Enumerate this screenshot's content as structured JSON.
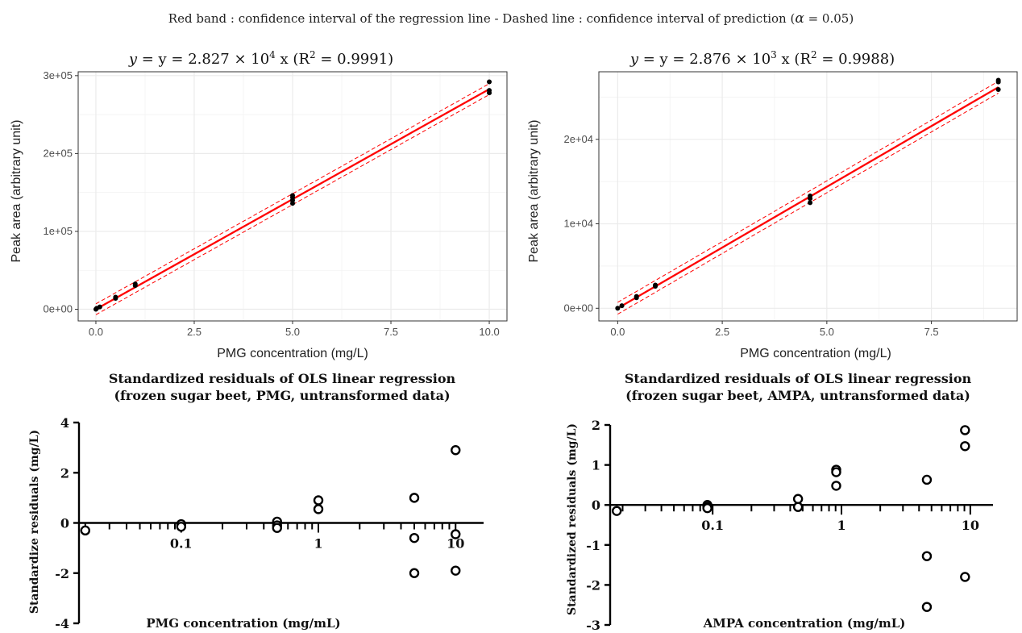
{
  "caption": "Red band : confidence interval of the regression line  -   Dashed line : confidence interval of prediction (",
  "caption_alpha": "α",
  "caption_tail": " = 0.05)",
  "colors": {
    "regression": "#ff0000",
    "band": "#ffb3b3",
    "points": "#000000",
    "grid": "#ebebeb"
  },
  "chart_data": [
    {
      "id": "pmg",
      "type": "scatter",
      "title_main": "y = 2.827 × 10",
      "title_exp": "4",
      "title_tail": " x",
      "r2_open": "(R",
      "r2_exp": "2",
      "r2_tail": " = 0.9991)",
      "xlabel": "PMG concentration (mg/L)",
      "ylabel": "Peak area (arbitrary unit)",
      "xlim": [
        -0.45,
        10.45
      ],
      "ylim": [
        -15000,
        305000
      ],
      "xticks": [
        0,
        2.5,
        5,
        7.5,
        10
      ],
      "xtick_labels": [
        "0.0",
        "2.5",
        "5.0",
        "7.5",
        "10.0"
      ],
      "yticks": [
        0,
        100000,
        200000,
        300000
      ],
      "ytick_labels": [
        "0e+00",
        "1e+05",
        "2e+05",
        "3e+05"
      ],
      "slope": 28270,
      "band_halfwidth": 1500,
      "pred_halfwidth": 7000,
      "points": [
        [
          0,
          0
        ],
        [
          0.02,
          1200
        ],
        [
          0.1,
          3000
        ],
        [
          0.5,
          14000
        ],
        [
          0.5,
          15500
        ],
        [
          1,
          30500
        ],
        [
          1,
          32500
        ],
        [
          5,
          136000
        ],
        [
          5,
          140000
        ],
        [
          5,
          143500
        ],
        [
          5,
          146000
        ],
        [
          10,
          278000
        ],
        [
          10,
          281000
        ],
        [
          10,
          292000
        ]
      ]
    },
    {
      "id": "ampa",
      "type": "scatter",
      "title_main": "y = 2.876 × 10",
      "title_exp": "3",
      "title_tail": " x",
      "r2_open": "(R",
      "r2_exp": "2",
      "r2_tail": " = 0.9988)",
      "xlabel": "PMG concentration (mg/L)",
      "ylabel": "Peak area (arbitrary unit)",
      "xlim": [
        -0.45,
        9.55
      ],
      "ylim": [
        -1500,
        28000
      ],
      "xticks": [
        0,
        2.5,
        5,
        7.5
      ],
      "xtick_labels": [
        "0.0",
        "2.5",
        "5.0",
        "7.5"
      ],
      "yticks": [
        0,
        10000,
        20000
      ],
      "ytick_labels": [
        "0e+00",
        "1e+04",
        "2e+04"
      ],
      "slope": 2876,
      "band_halfwidth": 150,
      "pred_halfwidth": 700,
      "points": [
        [
          0,
          0
        ],
        [
          0.1,
          300
        ],
        [
          0.45,
          1250
        ],
        [
          0.45,
          1400
        ],
        [
          0.9,
          2600
        ],
        [
          0.9,
          2750
        ],
        [
          4.6,
          12500
        ],
        [
          4.6,
          13000
        ],
        [
          4.6,
          13300
        ],
        [
          9.1,
          25900
        ],
        [
          9.1,
          26800
        ],
        [
          9.1,
          27000
        ]
      ]
    },
    {
      "id": "pmg-resid",
      "type": "scatter",
      "title_line1": "Standardized residuals of OLS linear regression",
      "title_line2": "(frozen sugar beet, PMG, untransformed data)",
      "xlabel": "PMG concentration (mg/mL)",
      "ylabel": "Standardize residuals (mg/L)",
      "x_scale": "log",
      "xlim": [
        0.018,
        16
      ],
      "ylim": [
        -4,
        4
      ],
      "yticks": [
        -4,
        -2,
        0,
        2,
        4
      ],
      "ytick_labels": [
        "-4",
        "-2",
        "0",
        "2",
        "4"
      ],
      "xtick_labels": [
        "0.1",
        "1",
        "10"
      ],
      "points": [
        [
          0.02,
          -0.3
        ],
        [
          0.1,
          -0.05
        ],
        [
          0.1,
          -0.15
        ],
        [
          0.5,
          0.05
        ],
        [
          0.5,
          -0.1
        ],
        [
          0.5,
          -0.2
        ],
        [
          1,
          0.9
        ],
        [
          1,
          0.55
        ],
        [
          5,
          1.0
        ],
        [
          5,
          -0.6
        ],
        [
          5,
          -2.0
        ],
        [
          10,
          2.9
        ],
        [
          10,
          -0.45
        ],
        [
          10,
          -1.9
        ]
      ]
    },
    {
      "id": "ampa-resid",
      "type": "scatter",
      "title_line1": "Standardized residuals of OLS linear regression",
      "title_line2": "(frozen sugar beet, AMPA, untransformed data)",
      "xlabel": "AMPA concentration (mg/mL)",
      "ylabel": "Standardized residuals (mg/L)",
      "x_scale": "log",
      "xlim": [
        0.016,
        15
      ],
      "ylim": [
        -3,
        2
      ],
      "yticks": [
        -3,
        -2,
        -1,
        0,
        1,
        2
      ],
      "ytick_labels": [
        "-3",
        "-2",
        "-1",
        "0",
        "1",
        "2"
      ],
      "xtick_labels": [
        "0.1",
        "1",
        "10"
      ],
      "points": [
        [
          0.018,
          -0.15
        ],
        [
          0.091,
          0.0
        ],
        [
          0.091,
          -0.05
        ],
        [
          0.091,
          -0.08
        ],
        [
          0.46,
          0.15
        ],
        [
          0.46,
          -0.05
        ],
        [
          0.91,
          0.88
        ],
        [
          0.91,
          0.82
        ],
        [
          0.91,
          0.48
        ],
        [
          4.6,
          0.63
        ],
        [
          4.6,
          -1.28
        ],
        [
          4.6,
          -2.55
        ],
        [
          9.1,
          1.87
        ],
        [
          9.1,
          1.47
        ],
        [
          9.1,
          -1.8
        ]
      ]
    }
  ]
}
